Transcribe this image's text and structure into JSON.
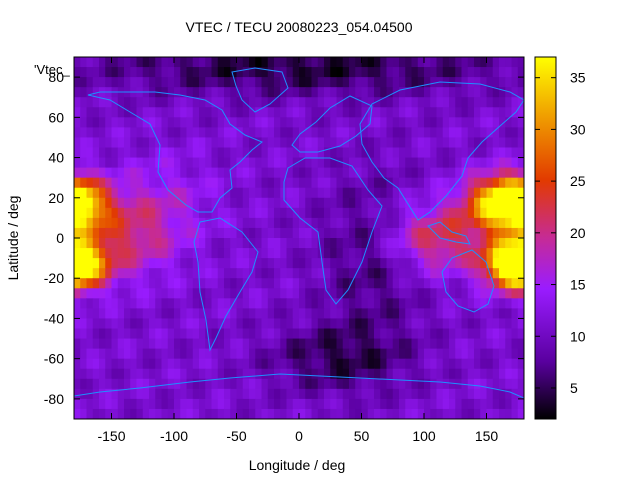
{
  "chart_data": {
    "type": "heatmap",
    "title": "VTEC / TECU 20080223_054.04500",
    "xlabel": "Longitude / deg",
    "ylabel": "Latitude / deg",
    "corner_label": "'Vtec_",
    "xlim": [
      -180,
      180
    ],
    "ylim": [
      -90,
      90
    ],
    "x_ticks": [
      -150,
      -100,
      -50,
      0,
      50,
      100,
      150
    ],
    "y_ticks": [
      -80,
      -60,
      -40,
      -20,
      0,
      20,
      40,
      60,
      80
    ],
    "colorbar": {
      "range": [
        2,
        37
      ],
      "ticks": [
        5,
        10,
        15,
        20,
        25,
        30,
        35
      ],
      "palette": [
        "#000000",
        "#5a00a0",
        "#9a1cff",
        "#c62b96",
        "#e23a00",
        "#f0a000",
        "#ffff00"
      ]
    },
    "overlay": "coastlines",
    "overlay_color": "#1e90ff",
    "features": [
      {
        "lon": -180,
        "lat": 16,
        "value": 37
      },
      {
        "lon": -180,
        "lat": -14,
        "value": 35
      },
      {
        "lon": 160,
        "lat": 18,
        "value": 35
      },
      {
        "lon": 170,
        "lat": -14,
        "value": 34
      },
      {
        "lon": 110,
        "lat": 0,
        "value": 26
      },
      {
        "lon": -140,
        "lat": 0,
        "value": 22
      },
      {
        "lon": 0,
        "lat": 80,
        "value": 3
      },
      {
        "lon": 40,
        "lat": -60,
        "value": 4
      }
    ]
  }
}
